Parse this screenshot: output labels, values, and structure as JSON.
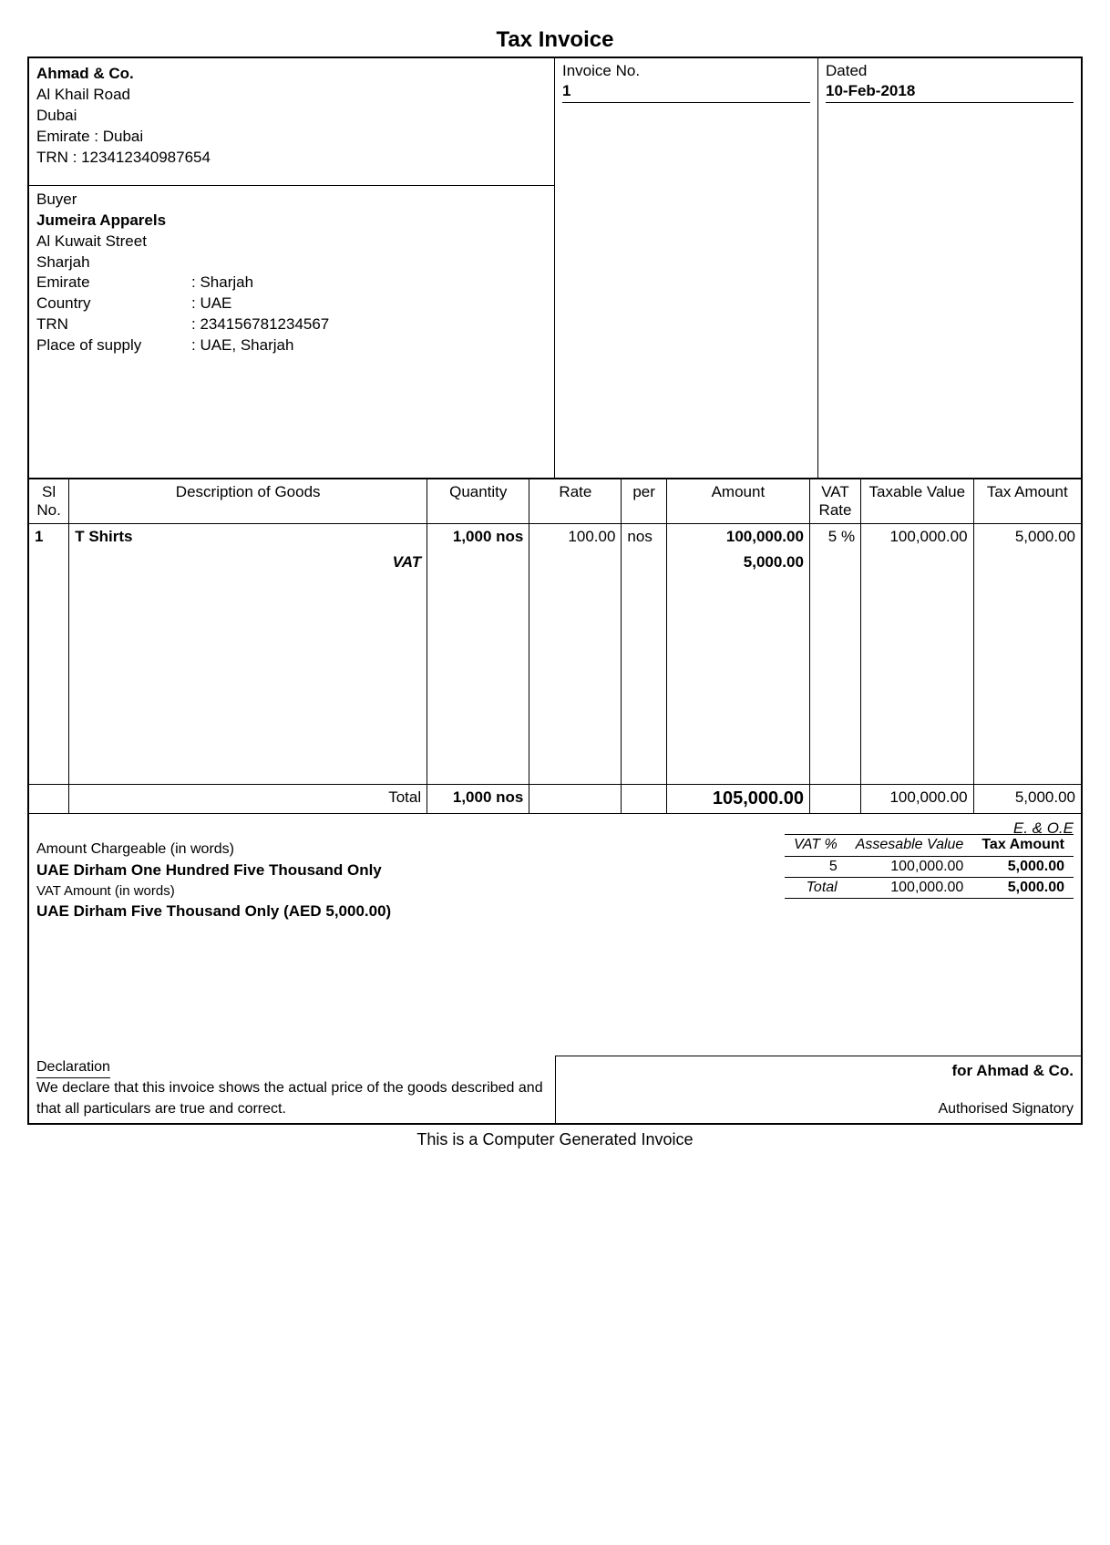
{
  "title": "Tax Invoice",
  "seller": {
    "name": "Ahmad & Co.",
    "address1": "Al Khail Road",
    "city": "Dubai",
    "emirate_line": "Emirate : Dubai",
    "trn_line": "TRN : 123412340987654"
  },
  "buyer_title": "Buyer",
  "buyer": {
    "name": "Jumeira Apparels",
    "address1": "Al Kuwait Street",
    "city": "Sharjah",
    "fields": {
      "emirate_label": "Emirate",
      "emirate_value": ": Sharjah",
      "country_label": "Country",
      "country_value": ": UAE",
      "trn_label": "TRN",
      "trn_value": ": 234156781234567",
      "pos_label": "Place of supply",
      "pos_value": ": UAE, Sharjah"
    }
  },
  "meta": {
    "invoice_no_label": "Invoice No.",
    "invoice_no": "1",
    "dated_label": "Dated",
    "dated": "10-Feb-2018"
  },
  "columns": {
    "sl": "Sl No.",
    "desc": "Description of Goods",
    "qty": "Quantity",
    "rate": "Rate",
    "per": "per",
    "amount": "Amount",
    "vat_rate": "VAT Rate",
    "tax_val": "Taxable Value",
    "tax_amt": "Tax Amount"
  },
  "items": [
    {
      "sl": "1",
      "desc": "T Shirts",
      "qty": "1,000 nos",
      "rate": "100.00",
      "per": "nos",
      "amount": "100,000.00",
      "vat_rate": "5 %",
      "tax_val": "100,000.00",
      "tax_amt": "5,000.00"
    }
  ],
  "vat_line": {
    "label": "VAT",
    "amount": "5,000.00"
  },
  "totals": {
    "label": "Total",
    "qty": "1,000 nos",
    "amount": "105,000.00",
    "tax_val": "100,000.00",
    "tax_amt": "5,000.00"
  },
  "words": {
    "chargeable_label": "Amount Chargeable (in words)",
    "chargeable_value": "UAE Dirham One Hundred Five Thousand Only",
    "vat_label": "VAT Amount (in words)",
    "vat_value": "UAE Dirham Five Thousand Only (AED 5,000.00)",
    "eooe": "E. & O.E"
  },
  "vat_summary": {
    "headers": {
      "vatpct": "VAT %",
      "assessable": "Assesable Value",
      "taxamt": "Tax Amount"
    },
    "rows": [
      {
        "pct": "5",
        "val": "100,000.00",
        "tax": "5,000.00"
      }
    ],
    "total_label": "Total",
    "total_val": "100,000.00",
    "total_tax": "5,000.00"
  },
  "declaration": {
    "title": "Declaration",
    "text": "We declare that this invoice shows the actual price of the goods described and that all particulars are true and correct."
  },
  "signatory": {
    "for": "for Ahmad & Co.",
    "auth": "Authorised Signatory"
  },
  "footer_note": "This is a Computer Generated Invoice"
}
